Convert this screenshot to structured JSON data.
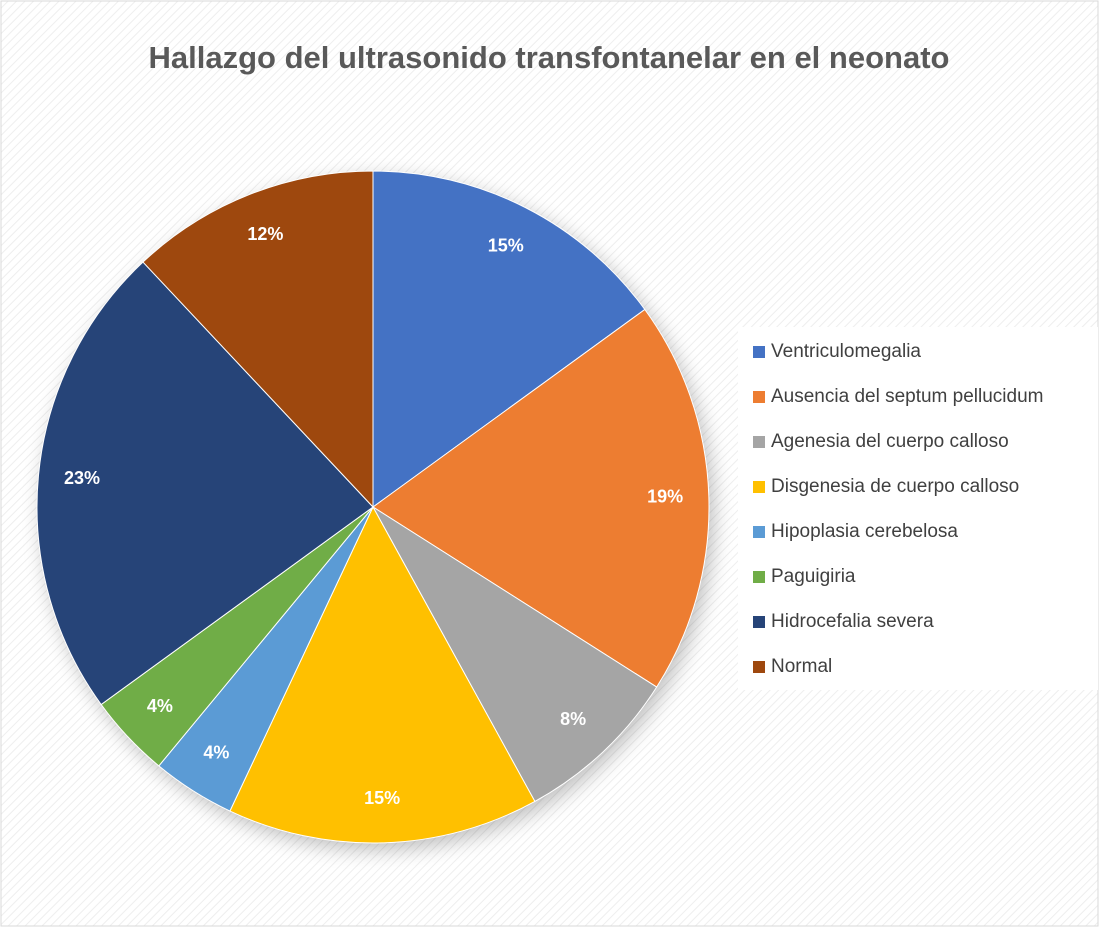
{
  "chart_data": {
    "type": "pie",
    "title": "Hallazgo del ultrasonido transfontanelar en el neonato",
    "categories": [
      "Ventriculomegalia",
      "Ausencia del septum pellucidum",
      "Agenesia del cuerpo calloso",
      "Disgenesia de cuerpo calloso",
      "Hipoplasia cerebelosa",
      "Paguigiria",
      "Hidrocefalia severa",
      "Normal"
    ],
    "values": [
      15,
      19,
      8,
      15,
      4,
      4,
      23,
      12
    ],
    "value_labels": [
      "15%",
      "19%",
      "8%",
      "15%",
      "4%",
      "4%",
      "23%",
      "12%"
    ],
    "colors": [
      "#4472c4",
      "#ed7d31",
      "#a5a5a5",
      "#ffc000",
      "#5b9bd5",
      "#70ad47",
      "#264478",
      "#9e480e"
    ],
    "legend": "right"
  }
}
